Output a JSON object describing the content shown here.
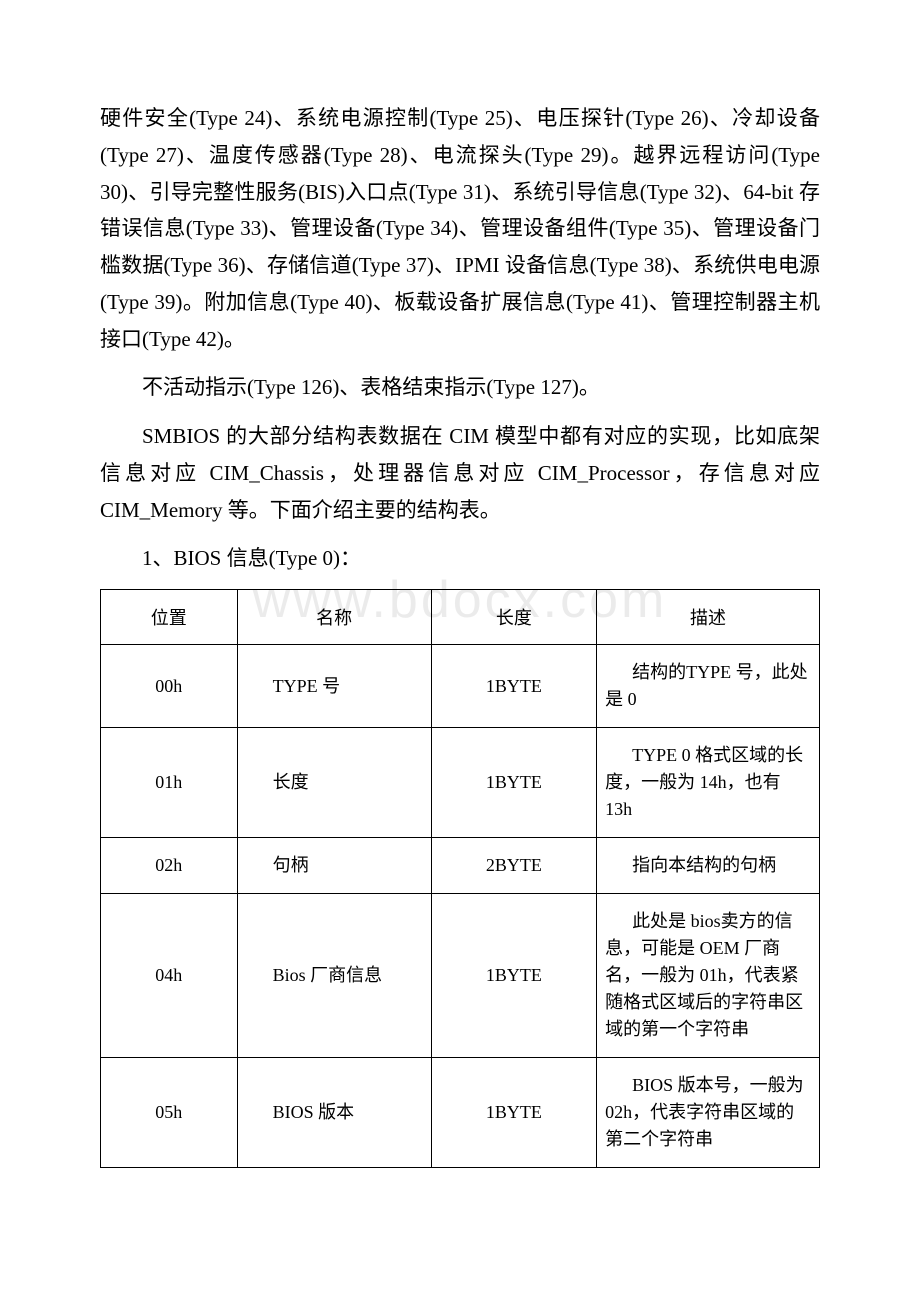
{
  "watermark": "www.bdocx.com",
  "paragraphs": {
    "p1": "硬件安全(Type 24)、系统电源控制(Type 25)、电压探针(Type 26)、冷却设备(Type 27)、温度传感器(Type 28)、电流探头(Type 29)。越界远程访问(Type 30)、引导完整性服务(BIS)入口点(Type 31)、系统引导信息(Type 32)、64-bit 存错误信息(Type 33)、管理设备(Type 34)、管理设备组件(Type 35)、管理设备门槛数据(Type 36)、存储信道(Type 37)、IPMI 设备信息(Type 38)、系统供电电源(Type 39)。附加信息(Type 40)、板载设备扩展信息(Type 41)、管理控制器主机接口(Type 42)。",
    "p2": "不活动指示(Type 126)、表格结束指示(Type 127)。",
    "p3": "SMBIOS 的大部分结构表数据在 CIM 模型中都有对应的实现，比如底架信息对应 CIM_Chassis，处理器信息对应 CIM_Processor，存信息对应 CIM_Memory 等。下面介绍主要的结构表。",
    "p4": "1、BIOS 信息(Type 0)："
  },
  "table": {
    "headers": {
      "c1": "位置",
      "c2": "名称",
      "c3": "长度",
      "c4": "描述"
    },
    "rows": [
      {
        "pos": "00h",
        "name": "TYPE 号",
        "len": "1BYTE",
        "desc": "结构的TYPE 号，此处是 0"
      },
      {
        "pos": "01h",
        "name": "长度",
        "len": "1BYTE",
        "desc": "TYPE 0 格式区域的长度，一般为 14h，也有 13h"
      },
      {
        "pos": "02h",
        "name": "句柄",
        "len": "2BYTE",
        "desc": "指向本结构的句柄"
      },
      {
        "pos": "04h",
        "name": "Bios 厂商信息",
        "len": "1BYTE",
        "desc": "此处是 bios卖方的信息，可能是 OEM 厂商名，一般为 01h，代表紧随格式区域后的字符串区域的第一个字符串"
      },
      {
        "pos": "05h",
        "name": "BIOS 版本",
        "len": "1BYTE",
        "desc": "BIOS 版本号，一般为 02h，代表字符串区域的第二个字符串"
      }
    ]
  }
}
